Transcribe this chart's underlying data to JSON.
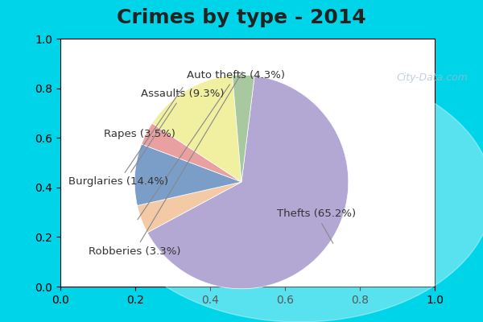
{
  "title": "Crimes by type - 2014",
  "slices": [
    {
      "label": "Thefts (65.2%)",
      "value": 65.2,
      "color": "#b3a8d4"
    },
    {
      "label": "Auto thefts (4.3%)",
      "value": 4.3,
      "color": "#f4c9a6"
    },
    {
      "label": "Assaults (9.3%)",
      "value": 9.3,
      "color": "#7b9ec9"
    },
    {
      "label": "Rapes (3.5%)",
      "value": 3.5,
      "color": "#e8a0a0"
    },
    {
      "label": "Burglaries (14.4%)",
      "value": 14.4,
      "color": "#f0f0a0"
    },
    {
      "label": "Robberies (3.3%)",
      "value": 3.3,
      "color": "#a8c8a0"
    }
  ],
  "title_fontsize": 18,
  "label_fontsize": 9.5,
  "bg_color_top": "#00d4e8",
  "bg_color_main": "#d8ede0",
  "startangle": 90,
  "watermark": "City-Data.com"
}
